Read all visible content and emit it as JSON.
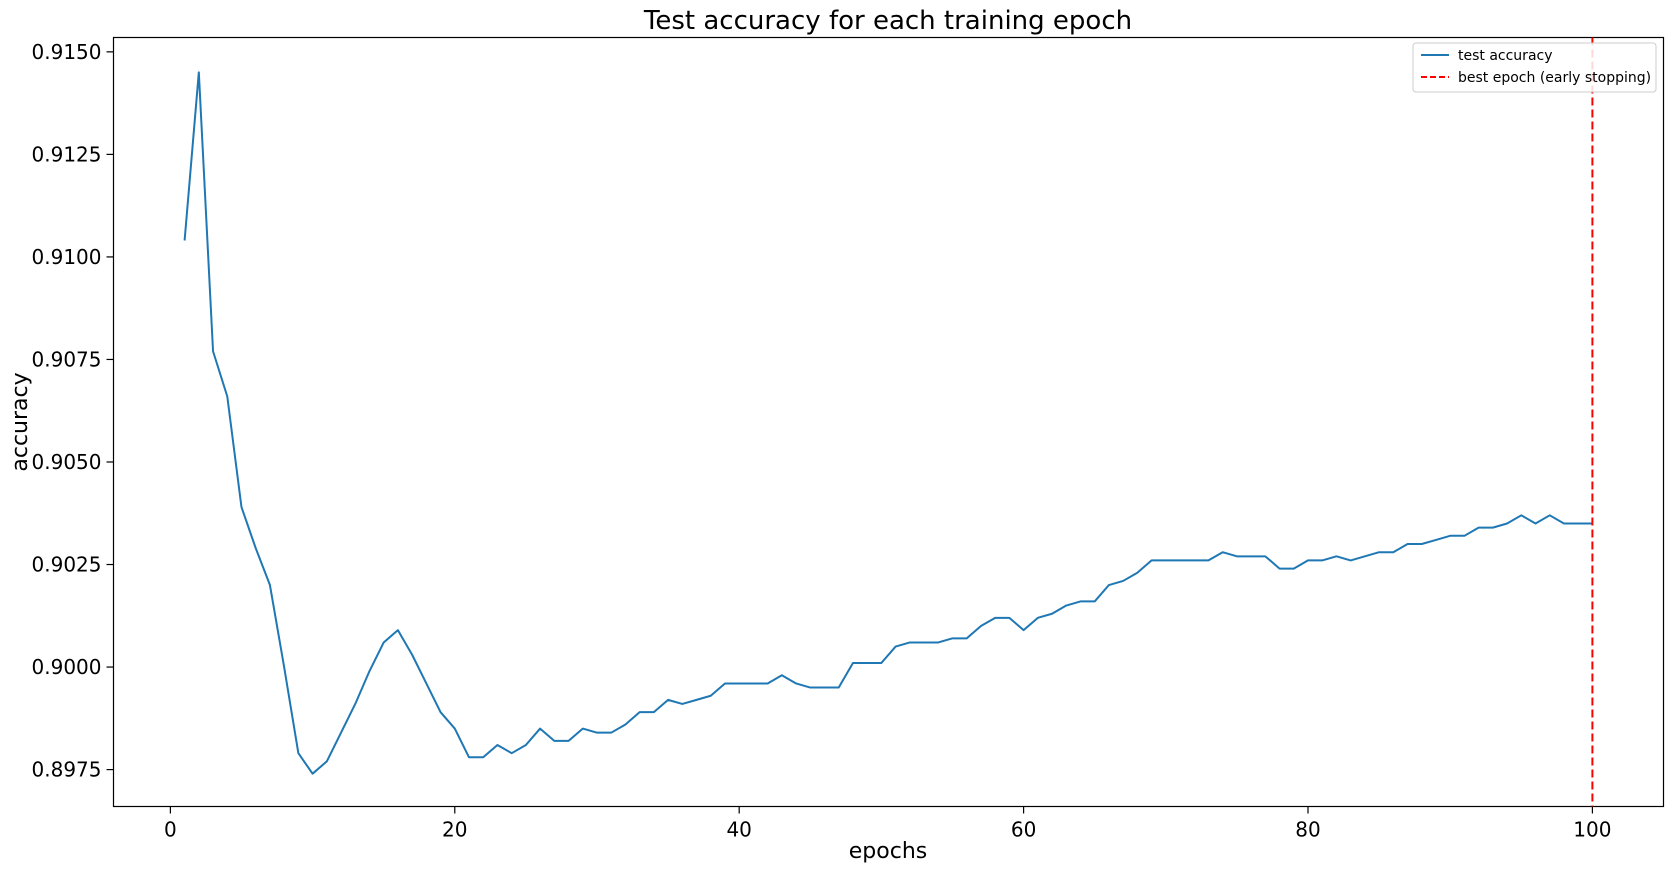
{
  "chart_data": {
    "type": "line",
    "title": "Test accuracy for each training epoch",
    "xlabel": "epochs",
    "ylabel": "accuracy",
    "xlim": [
      -4,
      105
    ],
    "ylim": [
      0.8966,
      0.91535
    ],
    "xticks": [
      0,
      20,
      40,
      60,
      80,
      100
    ],
    "yticks": [
      0.8975,
      0.9,
      0.9025,
      0.905,
      0.9075,
      0.91,
      0.9125,
      0.915
    ],
    "ytick_labels": [
      "0.8975",
      "0.9000",
      "0.9025",
      "0.9050",
      "0.9075",
      "0.9100",
      "0.9125",
      "0.9150"
    ],
    "grid": false,
    "legend_position": "top-right",
    "series": [
      {
        "name": "test accuracy",
        "color": "#1f77b4",
        "style": "solid",
        "x": [
          1,
          2,
          3,
          4,
          5,
          6,
          7,
          8,
          9,
          10,
          11,
          12,
          13,
          14,
          15,
          16,
          17,
          18,
          19,
          20,
          21,
          22,
          23,
          24,
          25,
          26,
          27,
          28,
          29,
          30,
          31,
          32,
          33,
          34,
          35,
          36,
          37,
          38,
          39,
          40,
          41,
          42,
          43,
          44,
          45,
          46,
          47,
          48,
          49,
          50,
          51,
          52,
          53,
          54,
          55,
          56,
          57,
          58,
          59,
          60,
          61,
          62,
          63,
          64,
          65,
          66,
          67,
          68,
          69,
          70,
          71,
          72,
          73,
          74,
          75,
          76,
          77,
          78,
          79,
          80,
          81,
          82,
          83,
          84,
          85,
          86,
          87,
          88,
          89,
          90,
          91,
          92,
          93,
          94,
          95,
          96,
          97,
          98,
          99,
          100
        ],
        "y": [
          0.9104,
          0.9145,
          0.9077,
          0.9066,
          0.9039,
          0.9029,
          0.902,
          0.9,
          0.8979,
          0.8974,
          0.8977,
          0.8984,
          0.8991,
          0.8999,
          0.9006,
          0.9009,
          0.9003,
          0.8996,
          0.8989,
          0.8985,
          0.8978,
          0.8978,
          0.8981,
          0.8979,
          0.8981,
          0.8985,
          0.8982,
          0.8982,
          0.8985,
          0.8984,
          0.8984,
          0.8986,
          0.8989,
          0.8989,
          0.8992,
          0.8991,
          0.8992,
          0.8993,
          0.8996,
          0.8996,
          0.8996,
          0.8996,
          0.8998,
          0.8996,
          0.8995,
          0.8995,
          0.8995,
          0.9001,
          0.9001,
          0.9001,
          0.9005,
          0.9006,
          0.9006,
          0.9006,
          0.9007,
          0.9007,
          0.901,
          0.9012,
          0.9012,
          0.9009,
          0.9012,
          0.9013,
          0.9015,
          0.9016,
          0.9016,
          0.902,
          0.9021,
          0.9023,
          0.9026,
          0.9026,
          0.9026,
          0.9026,
          0.9026,
          0.9028,
          0.9027,
          0.9027,
          0.9027,
          0.9024,
          0.9024,
          0.9026,
          0.9026,
          0.9027,
          0.9026,
          0.9027,
          0.9028,
          0.9028,
          0.903,
          0.903,
          0.9031,
          0.9032,
          0.9032,
          0.9034,
          0.9034,
          0.9035,
          0.9037,
          0.9035,
          0.9037,
          0.9035,
          0.9035,
          0.9035
        ]
      }
    ],
    "vlines": [
      {
        "name": "best epoch (early stopping)",
        "x": 100,
        "color": "#ff0000",
        "style": "dashed"
      }
    ]
  }
}
